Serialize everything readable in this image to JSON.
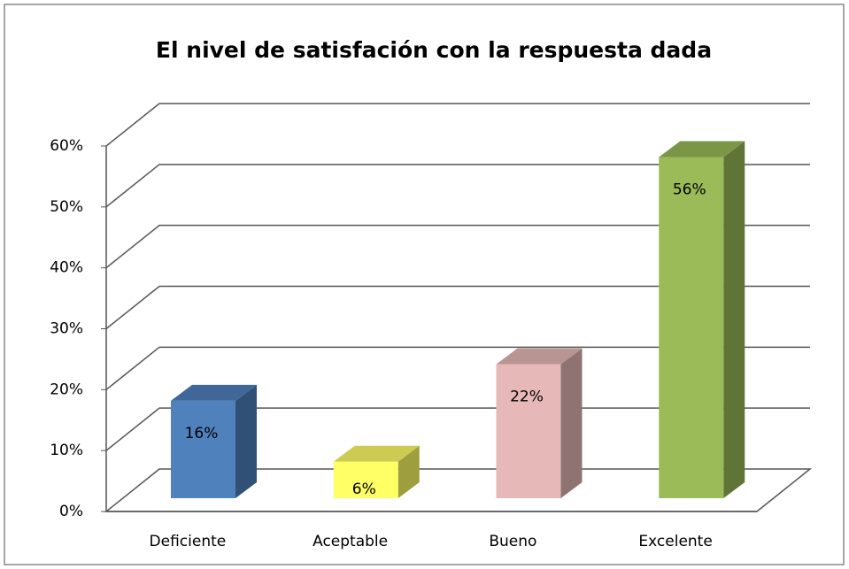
{
  "chart_data": {
    "type": "bar3d",
    "title": "El nivel de satisfación con la respuesta dada",
    "categories": [
      "Deficiente",
      "Aceptable",
      "Bueno",
      "Excelente"
    ],
    "values": [
      16,
      6,
      22,
      56
    ],
    "value_labels": [
      "16%",
      "6%",
      "22%",
      "56%"
    ],
    "colors": [
      "#4f81bd",
      "#ffff66",
      "#e6b9b8",
      "#9bbb59"
    ],
    "ylim": [
      0,
      60
    ],
    "yticks": [
      {
        "value": 0,
        "label": "0%"
      },
      {
        "value": 10,
        "label": "10%"
      },
      {
        "value": 20,
        "label": "20%"
      },
      {
        "value": 30,
        "label": "30%"
      },
      {
        "value": 40,
        "label": "40%"
      },
      {
        "value": 50,
        "label": "50%"
      },
      {
        "value": 60,
        "label": "60%"
      }
    ],
    "grid": true
  }
}
